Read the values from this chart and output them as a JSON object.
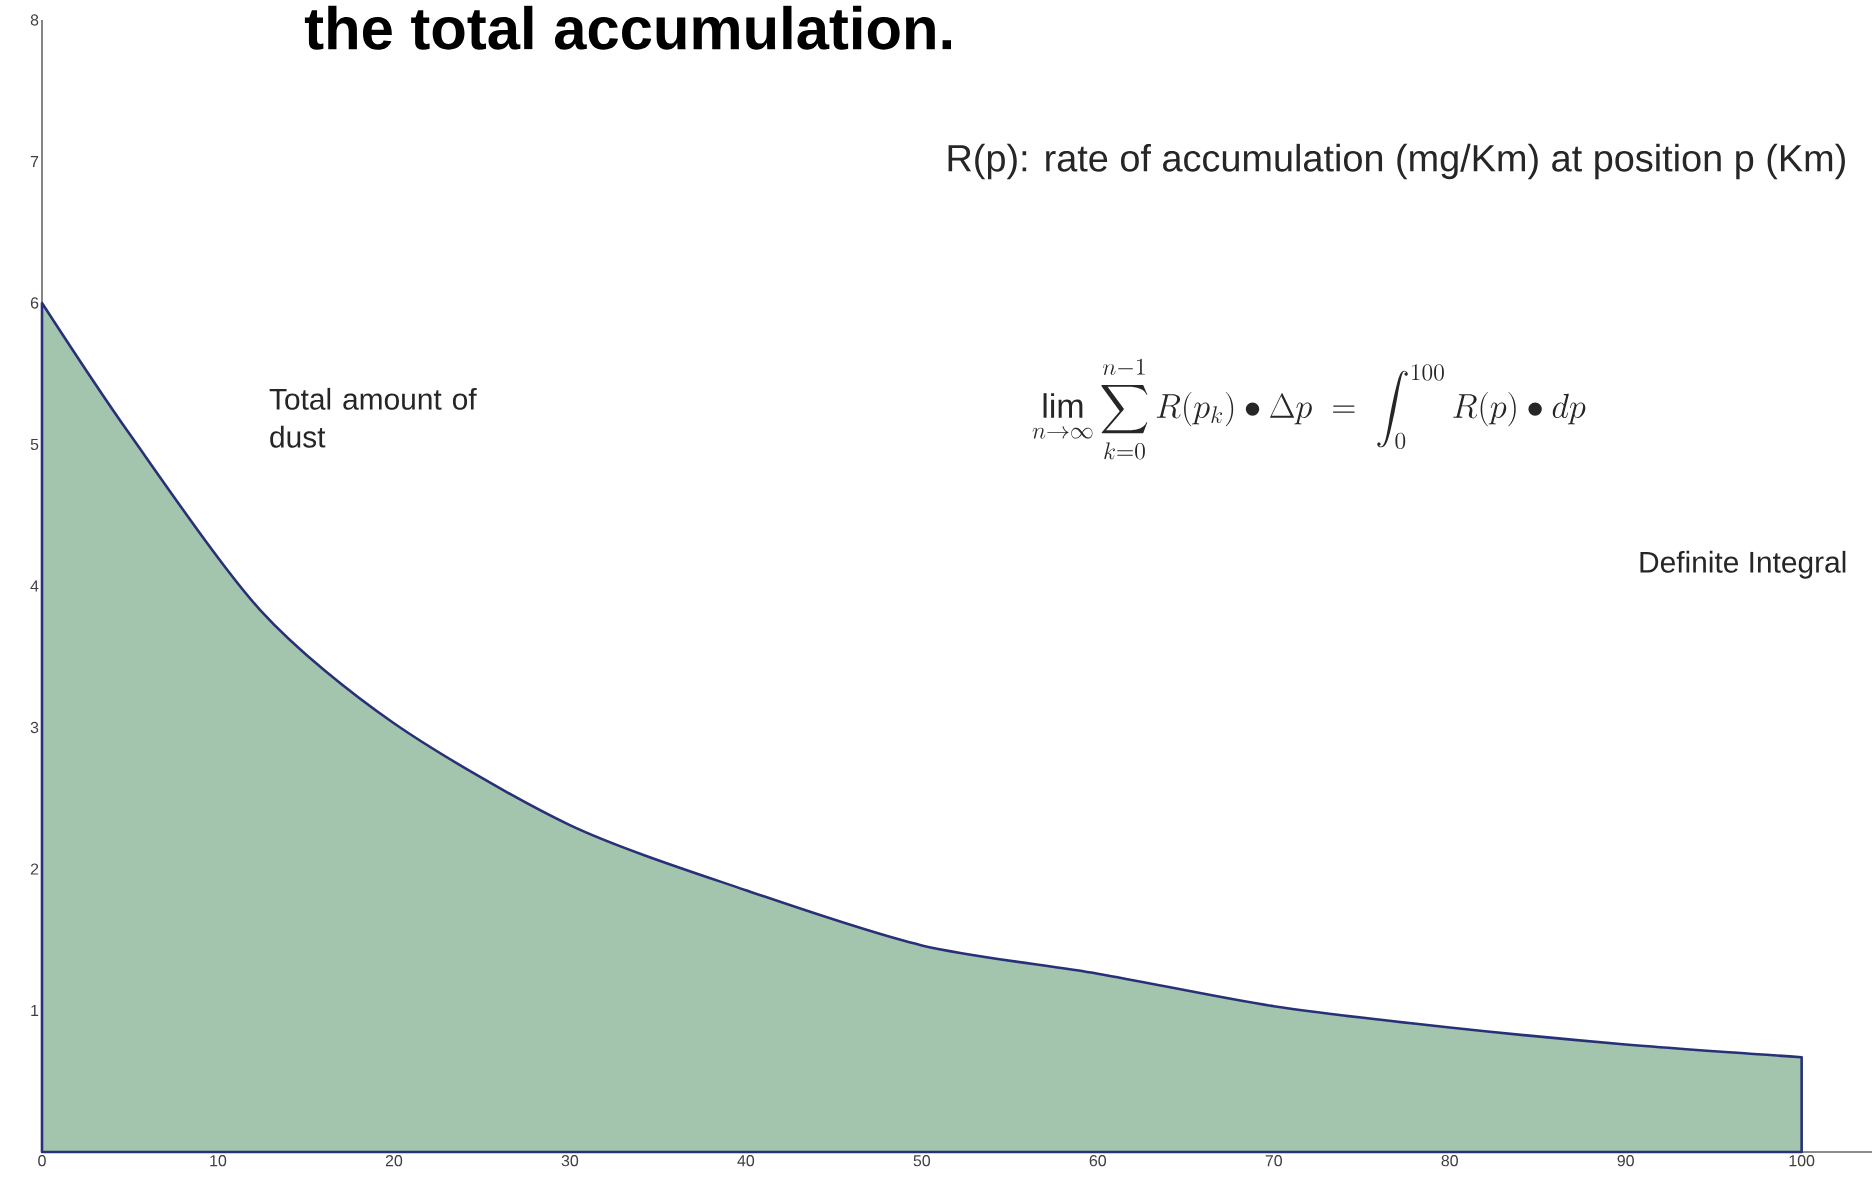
{
  "chart_data": {
    "type": "area",
    "title": "the total accumulation.",
    "annotations": [
      "R(p): rate of accumulation (mg/Km) at position p (Km)",
      "Total amount of dust",
      "\\lim_{n\\to\\infty}\\sum_{k=0}^{n-1} R(p_k)\\bullet\\Delta p \\;=\\; \\int_{0}^{100} R(p)\\bullet dp",
      "Definite Integral"
    ],
    "x": [
      0,
      5,
      12.4,
      20,
      30,
      40,
      50,
      60,
      70,
      80,
      90,
      100
    ],
    "values": [
      6,
      5.07,
      3.83,
      3.03,
      2.31,
      1.85,
      1.46,
      1.26,
      1.03,
      0.88,
      0.76,
      0.67
    ],
    "color": "#a3c4ad",
    "xlim": [
      0,
      104
    ],
    "ylim": [
      0,
      8
    ],
    "xticks": [
      0,
      10,
      20,
      30,
      40,
      50,
      60,
      70,
      80,
      90,
      100
    ],
    "yticks": [
      1,
      2,
      3,
      4,
      5,
      6,
      7,
      8
    ]
  }
}
